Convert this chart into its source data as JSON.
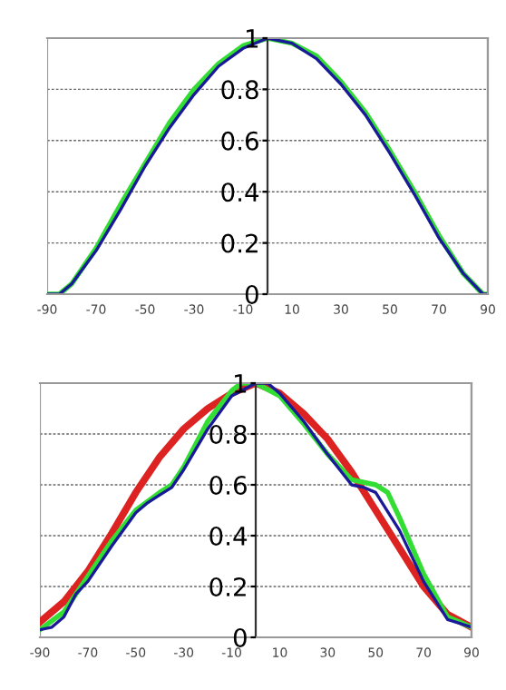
{
  "chart_data": [
    {
      "type": "line",
      "xlim": [
        -90,
        90
      ],
      "ylim": [
        0,
        1
      ],
      "xticks": [
        -90,
        -70,
        -50,
        -30,
        -10,
        10,
        30,
        50,
        70,
        90
      ],
      "yticks": [
        0,
        0.2,
        0.4,
        0.6,
        0.8,
        1
      ],
      "grid": "y",
      "line_style": "solid",
      "marker": "none",
      "series": [
        {
          "color": "#33dd33",
          "x": [
            -90,
            -85,
            -80,
            -70,
            -60,
            -50,
            -40,
            -30,
            -20,
            -10,
            0,
            10,
            20,
            30,
            40,
            50,
            60,
            70,
            80,
            88,
            90
          ],
          "values": [
            0,
            0,
            0.04,
            0.18,
            0.35,
            0.51,
            0.67,
            0.8,
            0.9,
            0.97,
            1,
            0.98,
            0.93,
            0.83,
            0.71,
            0.56,
            0.4,
            0.23,
            0.08,
            0,
            0
          ]
        },
        {
          "color": "#1a1a99",
          "x": [
            -90,
            -85,
            -80,
            -70,
            -60,
            -50,
            -40,
            -30,
            -20,
            -10,
            0,
            10,
            20,
            30,
            40,
            50,
            60,
            70,
            80,
            88,
            90
          ],
          "values": [
            0,
            0,
            0.04,
            0.17,
            0.33,
            0.5,
            0.65,
            0.78,
            0.89,
            0.96,
            1,
            0.98,
            0.92,
            0.82,
            0.7,
            0.55,
            0.39,
            0.22,
            0.08,
            0,
            0
          ]
        }
      ]
    },
    {
      "type": "line",
      "xlim": [
        -90,
        90
      ],
      "ylim": [
        0,
        1
      ],
      "xticks": [
        -90,
        -70,
        -50,
        -30,
        -10,
        10,
        30,
        50,
        70,
        90
      ],
      "yticks": [
        0,
        0.2,
        0.4,
        0.6,
        0.8,
        1
      ],
      "grid": "y",
      "line_style": "solid",
      "marker": "none",
      "series": [
        {
          "color": "#dd2222",
          "x": [
            -90,
            -80,
            -70,
            -60,
            -50,
            -40,
            -30,
            -20,
            -10,
            0,
            10,
            20,
            30,
            40,
            50,
            60,
            70,
            80,
            90
          ],
          "values": [
            0.06,
            0.14,
            0.26,
            0.41,
            0.57,
            0.71,
            0.82,
            0.9,
            0.96,
            1,
            0.96,
            0.88,
            0.78,
            0.65,
            0.5,
            0.35,
            0.2,
            0.09,
            0.04
          ]
        },
        {
          "color": "#33dd33",
          "x": [
            -90,
            -80,
            -70,
            -60,
            -50,
            -40,
            -35,
            -30,
            -20,
            -10,
            -6,
            0,
            10,
            20,
            30,
            40,
            45,
            50,
            55,
            60,
            70,
            80,
            90
          ],
          "values": [
            0.03,
            0.1,
            0.24,
            0.38,
            0.5,
            0.57,
            0.6,
            0.67,
            0.85,
            0.97,
            1,
            1,
            0.95,
            0.84,
            0.72,
            0.62,
            0.61,
            0.6,
            0.57,
            0.47,
            0.25,
            0.08,
            0.04
          ]
        },
        {
          "color": "#1a1a99",
          "x": [
            -90,
            -85,
            -80,
            -75,
            -70,
            -60,
            -50,
            -45,
            -40,
            -35,
            -30,
            -20,
            -10,
            0,
            5,
            10,
            20,
            30,
            40,
            45,
            50,
            60,
            70,
            80,
            90
          ],
          "values": [
            0.03,
            0.04,
            0.08,
            0.17,
            0.22,
            0.36,
            0.49,
            0.53,
            0.56,
            0.59,
            0.66,
            0.82,
            0.95,
            1,
            1,
            0.96,
            0.85,
            0.72,
            0.6,
            0.59,
            0.57,
            0.42,
            0.22,
            0.07,
            0.04
          ]
        }
      ]
    }
  ]
}
